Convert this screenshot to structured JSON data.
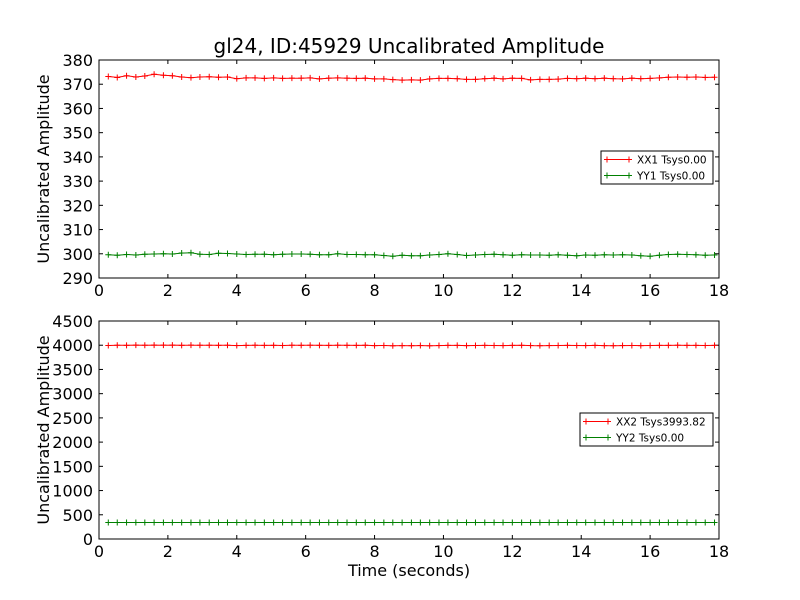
{
  "chart_data": [
    {
      "type": "line",
      "title": "gl24, ID:45929 Uncalibrated Amplitude",
      "xlabel": "",
      "ylabel": "Uncalibrated Amplitude",
      "xlim": [
        0,
        18
      ],
      "ylim": [
        290,
        380
      ],
      "xticks": [
        0,
        2,
        4,
        6,
        8,
        10,
        12,
        14,
        16,
        18
      ],
      "yticks": [
        290,
        300,
        310,
        320,
        330,
        340,
        350,
        360,
        370,
        380
      ],
      "grid": false,
      "legend_position": "center-right",
      "x": [
        0.27,
        0.53,
        0.8,
        1.07,
        1.33,
        1.6,
        1.87,
        2.13,
        2.4,
        2.67,
        2.93,
        3.2,
        3.47,
        3.73,
        4.0,
        4.27,
        4.53,
        4.8,
        5.07,
        5.33,
        5.6,
        5.87,
        6.13,
        6.4,
        6.67,
        6.93,
        7.2,
        7.47,
        7.73,
        8.0,
        8.27,
        8.53,
        8.8,
        9.07,
        9.33,
        9.6,
        9.87,
        10.13,
        10.4,
        10.67,
        10.93,
        11.2,
        11.47,
        11.73,
        12.0,
        12.27,
        12.53,
        12.8,
        13.07,
        13.33,
        13.6,
        13.87,
        14.13,
        14.4,
        14.67,
        14.93,
        15.2,
        15.47,
        15.73,
        16.0,
        16.27,
        16.53,
        16.8,
        17.07,
        17.33,
        17.6,
        17.87
      ],
      "series": [
        {
          "name": "XX1 Tsys0.00",
          "color": "#ff0000",
          "values": [
            373.2,
            372.8,
            373.5,
            373.0,
            373.4,
            374.1,
            373.7,
            373.5,
            373.0,
            372.7,
            373.0,
            373.1,
            372.9,
            373.0,
            372.3,
            372.6,
            372.6,
            372.4,
            372.6,
            372.4,
            372.5,
            372.5,
            372.6,
            372.2,
            372.5,
            372.6,
            372.5,
            372.4,
            372.5,
            372.2,
            372.2,
            371.9,
            371.7,
            371.8,
            371.7,
            372.2,
            372.4,
            372.4,
            372.3,
            372.0,
            372.0,
            372.3,
            372.5,
            372.2,
            372.5,
            372.4,
            371.8,
            372.0,
            372.0,
            372.1,
            372.4,
            372.3,
            372.5,
            372.3,
            372.5,
            372.3,
            372.2,
            372.5,
            372.3,
            372.4,
            372.6,
            372.9,
            373.0,
            372.9,
            373.0,
            372.8,
            372.9
          ]
        },
        {
          "name": "YY1 Tsys0.00",
          "color": "#008000",
          "values": [
            299.6,
            299.4,
            299.7,
            299.5,
            299.8,
            299.9,
            300.0,
            299.9,
            300.3,
            300.4,
            299.8,
            299.7,
            300.2,
            300.1,
            299.9,
            299.7,
            299.8,
            299.8,
            299.6,
            299.8,
            299.9,
            299.9,
            299.8,
            299.6,
            299.6,
            300.0,
            299.7,
            299.7,
            299.6,
            299.6,
            299.3,
            299.0,
            299.4,
            299.2,
            299.2,
            299.5,
            299.7,
            300.0,
            299.7,
            299.3,
            299.5,
            299.7,
            299.8,
            299.6,
            299.4,
            299.6,
            299.5,
            299.5,
            299.4,
            299.6,
            299.4,
            299.2,
            299.5,
            299.4,
            299.6,
            299.5,
            299.6,
            299.5,
            299.2,
            299.0,
            299.4,
            299.7,
            299.8,
            299.7,
            299.6,
            299.4,
            299.5
          ]
        }
      ]
    },
    {
      "type": "line",
      "title": "",
      "xlabel": "Time (seconds)",
      "ylabel": "Uncalibrated Amplitude",
      "xlim": [
        0,
        18
      ],
      "ylim": [
        0,
        4500
      ],
      "xticks": [
        0,
        2,
        4,
        6,
        8,
        10,
        12,
        14,
        16,
        18
      ],
      "yticks": [
        0,
        500,
        1000,
        1500,
        2000,
        2500,
        3000,
        3500,
        4000,
        4500
      ],
      "grid": false,
      "legend_position": "center-right",
      "x": [
        0.27,
        0.53,
        0.8,
        1.07,
        1.33,
        1.6,
        1.87,
        2.13,
        2.4,
        2.67,
        2.93,
        3.2,
        3.47,
        3.73,
        4.0,
        4.27,
        4.53,
        4.8,
        5.07,
        5.33,
        5.6,
        5.87,
        6.13,
        6.4,
        6.67,
        6.93,
        7.2,
        7.47,
        7.73,
        8.0,
        8.27,
        8.53,
        8.8,
        9.07,
        9.33,
        9.6,
        9.87,
        10.13,
        10.4,
        10.67,
        10.93,
        11.2,
        11.47,
        11.73,
        12.0,
        12.27,
        12.53,
        12.8,
        13.07,
        13.33,
        13.6,
        13.87,
        14.13,
        14.4,
        14.67,
        14.93,
        15.2,
        15.47,
        15.73,
        16.0,
        16.27,
        16.53,
        16.8,
        17.07,
        17.33,
        17.6,
        17.87
      ],
      "series": [
        {
          "name": "XX2 Tsys3993.82",
          "color": "#ff0000",
          "values": [
            3995,
            4000,
            3998,
            4002,
            3999,
            4003,
            4001,
            4002,
            3998,
            4001,
            3999,
            4000,
            3998,
            4000,
            3993,
            3996,
            3999,
            3997,
            3998,
            3994,
            3999,
            3998,
            4000,
            3998,
            3997,
            3999,
            3998,
            3996,
            3999,
            3992,
            3994,
            3990,
            3992,
            3991,
            3993,
            3990,
            3993,
            3997,
            3996,
            3992,
            3994,
            3997,
            3995,
            3993,
            3996,
            3998,
            3993,
            3991,
            3993,
            3994,
            3996,
            3995,
            3993,
            3997,
            3992,
            3991,
            3993,
            3995,
            3992,
            3994,
            3996,
            3997,
            3999,
            3997,
            3996,
            3995,
            3997
          ]
        },
        {
          "name": "YY2 Tsys0.00",
          "color": "#008000",
          "values": [
            340,
            340,
            340,
            341,
            340,
            340,
            341,
            340,
            340,
            341,
            340,
            340,
            340,
            341,
            340,
            340,
            340,
            340,
            341,
            340,
            340,
            340,
            340,
            341,
            340,
            340,
            340,
            340,
            341,
            340,
            340,
            340,
            340,
            340,
            341,
            340,
            340,
            340,
            340,
            341,
            340,
            340,
            340,
            340,
            340,
            341,
            340,
            340,
            340,
            340,
            341,
            340,
            340,
            340,
            340,
            340,
            341,
            340,
            340,
            340,
            340,
            340,
            341,
            340,
            340,
            340,
            340
          ]
        }
      ]
    }
  ]
}
